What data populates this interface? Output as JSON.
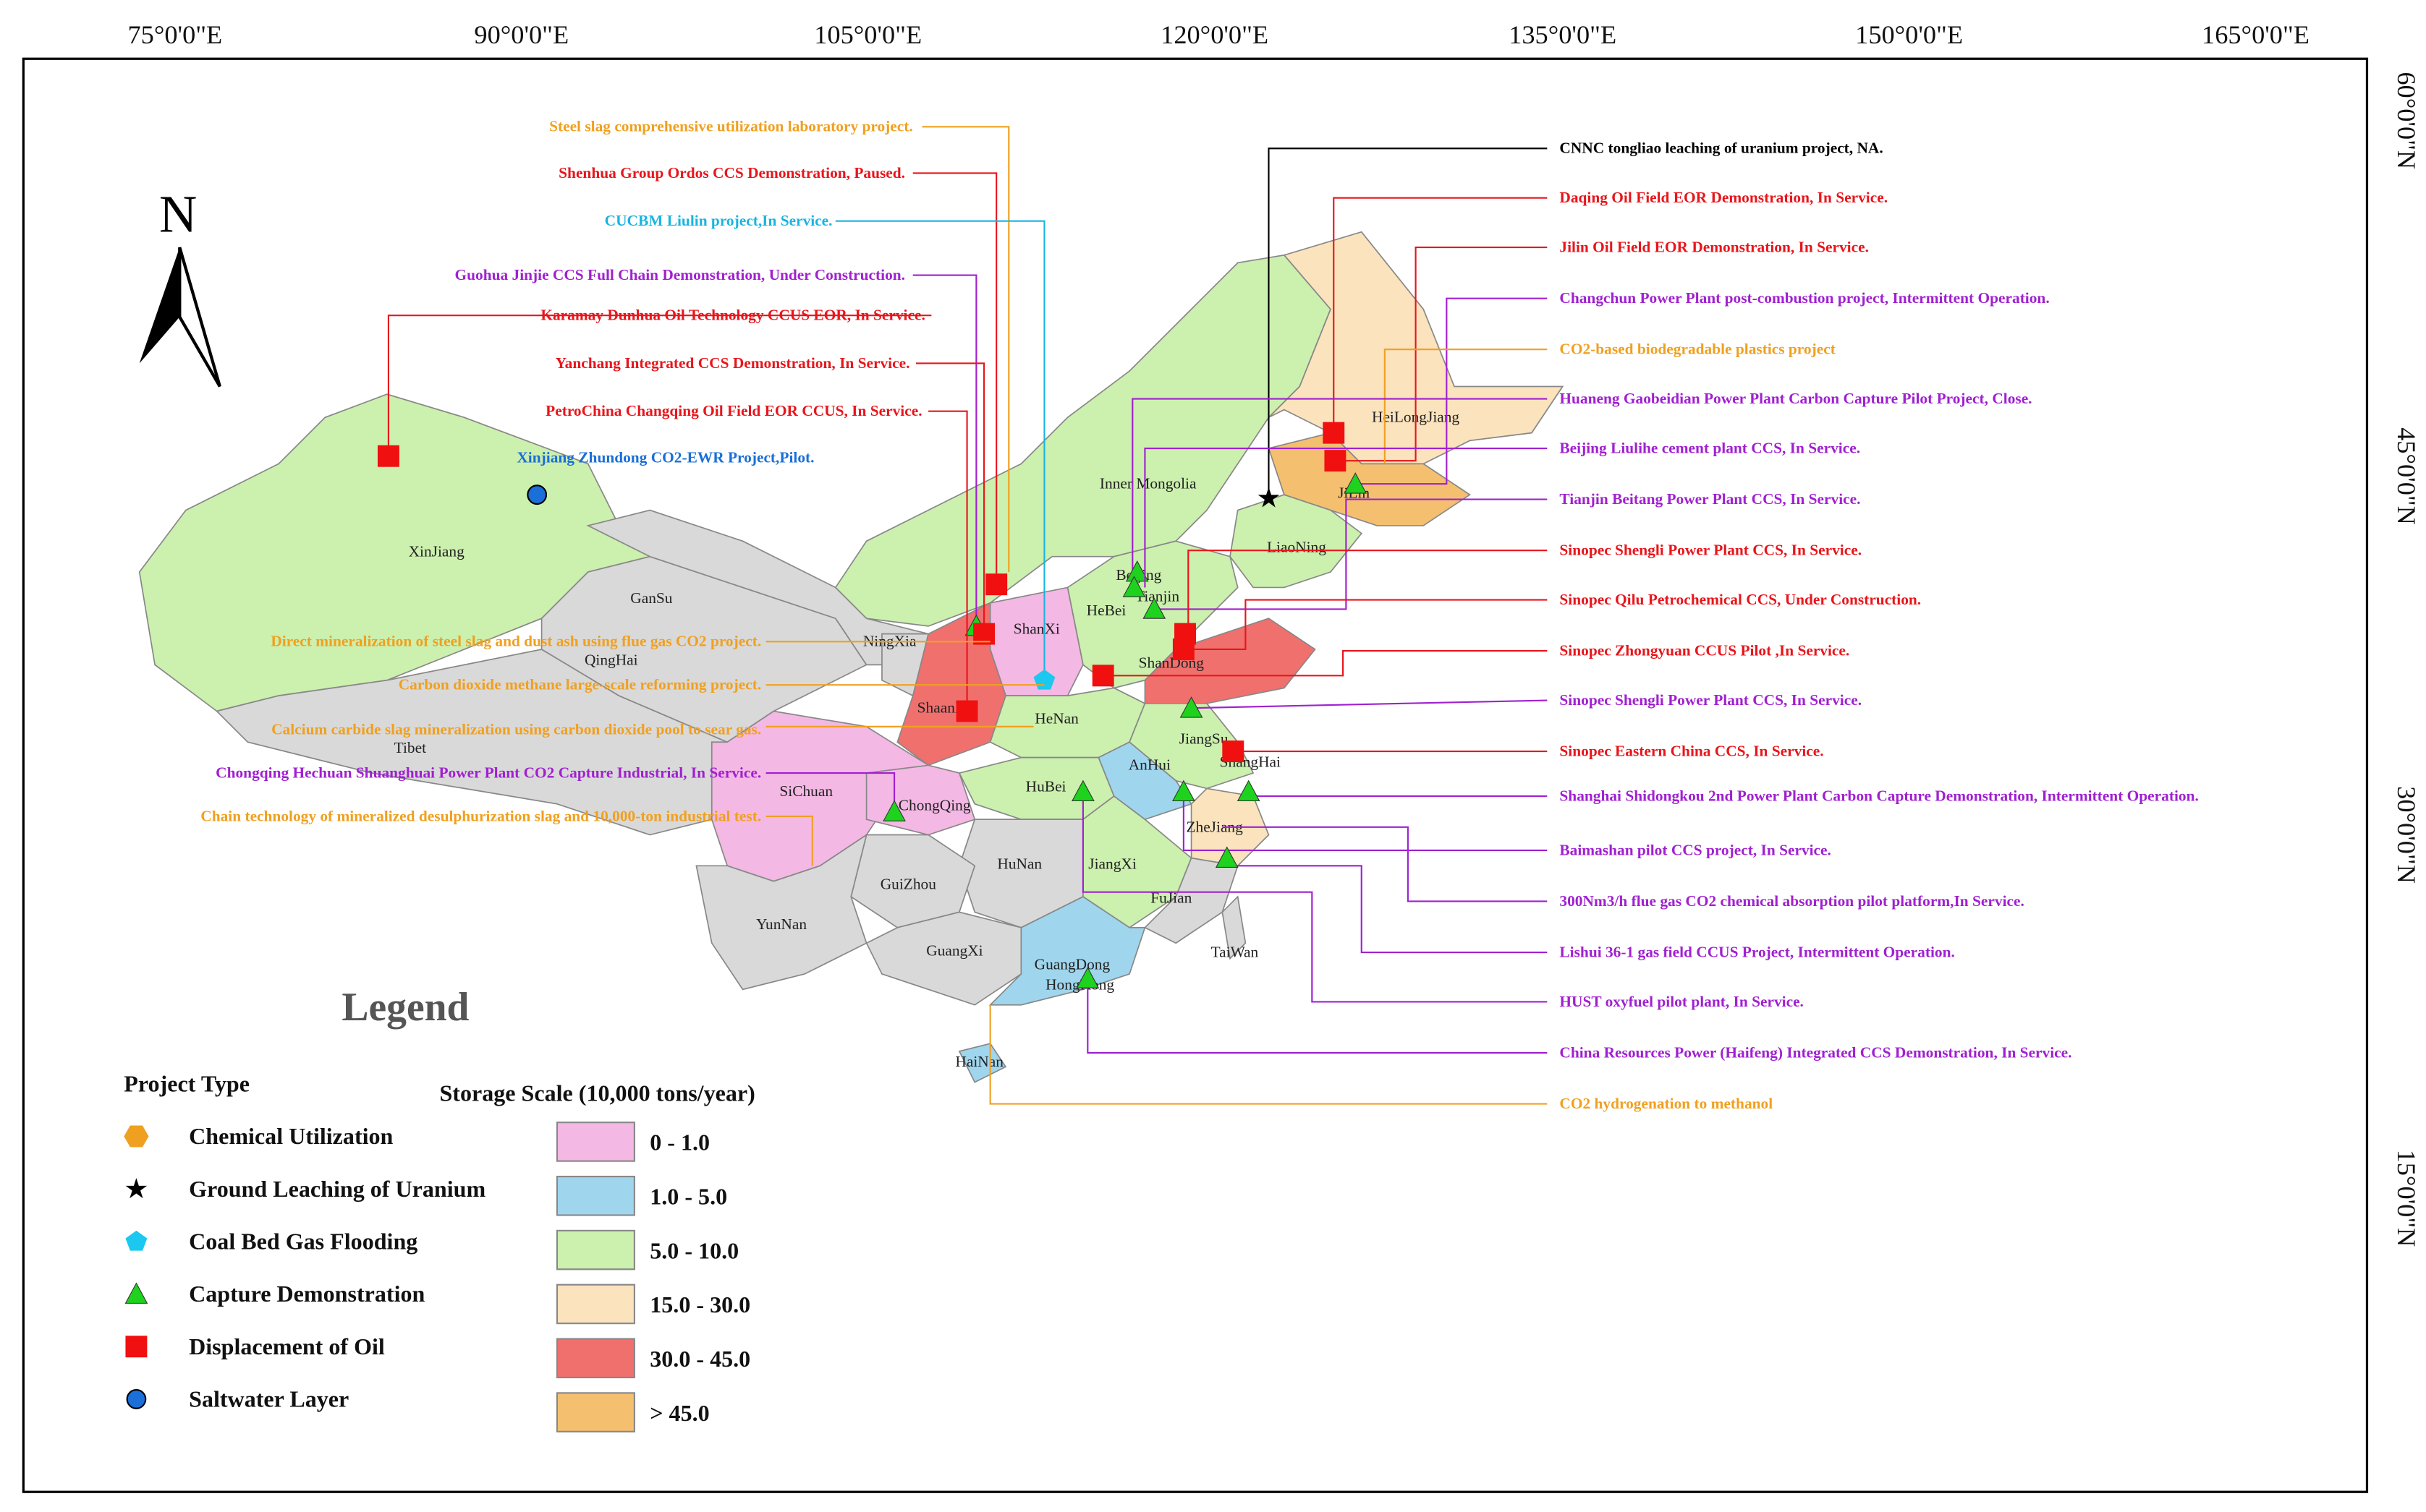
{
  "map": {
    "lon_labels": [
      "75°0'0\"E",
      "90°0'0\"E",
      "105°0'0\"E",
      "120°0'0\"E",
      "135°0'0\"E",
      "150°0'0\"E",
      "165°0'0\"E"
    ],
    "lat_labels": [
      "60°0'0\"N",
      "45°0'0\"N",
      "30°0'0\"N",
      "15°0'0\"N"
    ],
    "north": "N",
    "provinces": [
      "XinJiang",
      "Tibet",
      "QingHai",
      "GanSu",
      "NingXia",
      "Inner Mongolia",
      "HeiLongJiang",
      "JiLin",
      "LiaoNing",
      "Beijing",
      "Tianjin",
      "HeBei",
      "ShanXi",
      "ShaanXi",
      "ShanDong",
      "HeNan",
      "JiangSu",
      "AnHui",
      "ShangHai",
      "HuBei",
      "SiChuan",
      "ChongQing",
      "ZheJiang",
      "JiangXi",
      "HuNan",
      "GuiZhou",
      "YunNan",
      "FuJian",
      "GuangXi",
      "GuangDong",
      "HongKong",
      "HaiNan",
      "TaiWan"
    ],
    "projects": [
      {
        "label": "CNNC tongliao leaching of uranium project, NA.",
        "color": "#000000"
      },
      {
        "label": "Daqing Oil Field EOR Demonstration, In Service.",
        "color": "#e8151b"
      },
      {
        "label": "Jilin Oil Field EOR Demonstration, In Service.",
        "color": "#e8151b"
      },
      {
        "label": "Changchun Power Plant post-combustion project, Intermittent Operation.",
        "color": "#a020d0"
      },
      {
        "label": "CO2-based biodegradable plastics project",
        "color": "#f0a020"
      },
      {
        "label": "Huaneng Gaobeidian Power Plant Carbon Capture Pilot Project, Close.",
        "color": "#a020d0"
      },
      {
        "label": "Beijing Liulihe cement plant CCS, In Service.",
        "color": "#a020d0"
      },
      {
        "label": "Tianjin Beitang Power Plant CCS, In Service.",
        "color": "#a020d0"
      },
      {
        "label": "Sinopec Shengli Power Plant CCS, In Service.",
        "color": "#e8151b"
      },
      {
        "label": "Sinopec Qilu Petrochemical CCS, Under Construction.",
        "color": "#e8151b"
      },
      {
        "label": "Sinopec Zhongyuan CCUS Pilot ,In Service.",
        "color": "#e8151b"
      },
      {
        "label": "Sinopec Shengli Power Plant CCS, In Service.",
        "color": "#a020d0"
      },
      {
        "label": "Sinopec Eastern China CCS, In Service.",
        "color": "#e8151b"
      },
      {
        "label": "Shanghai Shidongkou 2nd Power Plant Carbon Capture Demonstration,  Intermittent Operation.",
        "color": "#a020d0"
      },
      {
        "label": "Baimashan pilot CCS project, In Service.",
        "color": "#a020d0"
      },
      {
        "label": "300Nm3/h flue gas CO2 chemical absorption pilot platform,In Service.",
        "color": "#a020d0"
      },
      {
        "label": "Lishui 36-1 gas field CCUS Project, Intermittent Operation.",
        "color": "#a020d0"
      },
      {
        "label": "HUST oxyfuel pilot plant, In Service.",
        "color": "#a020d0"
      },
      {
        "label": "China Resources Power (Haifeng) Integrated CCS Demonstration, In Service.",
        "color": "#a020d0"
      },
      {
        "label": "CO2 hydrogenation to methanol",
        "color": "#f0a020"
      },
      {
        "label": "Steel slag comprehensive utilization laboratory project.",
        "color": "#f0a020"
      },
      {
        "label": "Shenhua Group Ordos CCS Demonstration, Paused.",
        "color": "#e8151b"
      },
      {
        "label": "CUCBM Liulin project,In Service.",
        "color": "#1ab4e0"
      },
      {
        "label": "Guohua Jinjie CCS Full Chain Demonstration, Under Construction.",
        "color": "#a020d0"
      },
      {
        "label": "Karamay Dunhua Oil Technology CCUS EOR, In Service.",
        "color": "#e8151b"
      },
      {
        "label": "Yanchang Integrated CCS Demonstration, In Service.",
        "color": "#e8151b"
      },
      {
        "label": "PetroChina Changqing Oil Field EOR CCUS, In Service.",
        "color": "#e8151b"
      },
      {
        "label": "Xinjiang Zhundong CO2-EWR Project,Pilot.",
        "color": "#1a6fd8"
      },
      {
        "label": "Direct mineralization of steel slag and dust ash using flue gas CO2 project.",
        "color": "#f0a020"
      },
      {
        "label": "Carbon dioxide methane large-scale reforming project.",
        "color": "#f0a020"
      },
      {
        "label": "Calcium carbide slag mineralization using carbon dioxide pool to sear gas.",
        "color": "#f0a020"
      },
      {
        "label": "Chongqing Hechuan Shuanghuai Power Plant CO2 Capture Industrial, In Service.",
        "color": "#a020d0"
      },
      {
        "label": "Chain technology of mineralized desulphurization slag and 10,000-ton industrial test.",
        "color": "#f0a020"
      }
    ],
    "legend": {
      "title": "Legend",
      "project_type_title": "Project Type",
      "project_types": [
        {
          "label": "Chemical Utilization",
          "color": "#f0a020"
        },
        {
          "label": "Ground Leaching of Uranium",
          "color": "#000000"
        },
        {
          "label": "Coal Bed Gas Flooding",
          "color": "#1ac8f0"
        },
        {
          "label": "Capture Demonstration",
          "color": "#1ed21e"
        },
        {
          "label": "Displacement of Oil",
          "color": "#f01010"
        },
        {
          "label": "Saltwater Layer",
          "color": "#1a6fd8"
        }
      ],
      "storage_title": "Storage Scale (10,000 tons/year)",
      "storage_scales": [
        {
          "label": "0 - 1.0",
          "color": "#f4b8e4"
        },
        {
          "label": "1.0 - 5.0",
          "color": "#9fd6ee"
        },
        {
          "label": "5.0 - 10.0",
          "color": "#ccf0ae"
        },
        {
          "label": "15.0 - 30.0",
          "color": "#fbe3bd"
        },
        {
          "label": "30.0 - 45.0",
          "color": "#f0706e"
        },
        {
          "label": "> 45.0",
          "color": "#f4c070"
        }
      ]
    }
  }
}
